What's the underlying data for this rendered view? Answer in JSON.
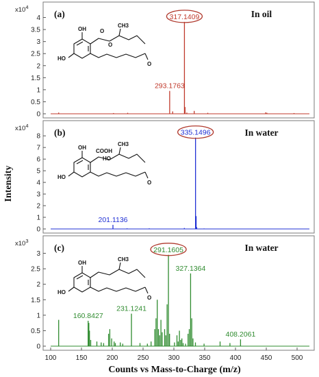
{
  "chart_data": {
    "type": "line",
    "ylabel": "Intensity",
    "xlabel": "Counts vs Mass-to-Charge (m/z)",
    "xlim": [
      100,
      520
    ],
    "xticks": [
      100,
      150,
      200,
      250,
      300,
      350,
      400,
      450,
      500
    ],
    "panels": [
      {
        "tag": "(a)",
        "condition": "In oil",
        "scale_label": "x10",
        "scale_exp": "4",
        "color": "#c0392b",
        "ylim": [
          0,
          4.3
        ],
        "yticks": [
          0,
          0.5,
          1,
          1.5,
          2,
          2.5,
          3,
          3.5,
          4
        ],
        "structure": {
          "oh_left": "OH",
          "oh_bottom": "HO",
          "carbonyl": "O",
          "ring_o": "O",
          "ketone": "O",
          "methyl": "CH3"
        },
        "peaks": [
          [
            113,
            0.05
          ],
          [
            202,
            0.03
          ],
          [
            225,
            0.04
          ],
          [
            293.18,
            0.95
          ],
          [
            298,
            0.1
          ],
          [
            317.14,
            3.82
          ],
          [
            318.1,
            0.28
          ],
          [
            321,
            0.05
          ],
          [
            333,
            0.12
          ],
          [
            355,
            0.04
          ],
          [
            449,
            0.06
          ],
          [
            451,
            0.04
          ],
          [
            495,
            0.03
          ]
        ],
        "labels": [
          {
            "x": 293.1763,
            "y": 0.95,
            "text": "293.1763",
            "circled": false
          },
          {
            "x": 317.1409,
            "y": 3.82,
            "text": "317.1409",
            "circled": true
          }
        ]
      },
      {
        "tag": "(b)",
        "condition": "In water",
        "scale_label": "x10",
        "scale_exp": "4",
        "color": "#1f2fd4",
        "ylim": [
          0,
          8.6
        ],
        "yticks": [
          0,
          1,
          2,
          3,
          4,
          5,
          6,
          7,
          8
        ],
        "structure": {
          "oh_left": "OH",
          "oh_bottom": "HO",
          "cooh": "COOH",
          "ho_chain": "HO",
          "ketone": "O",
          "methyl": "CH3"
        },
        "peaks": [
          [
            201.11,
            0.35
          ],
          [
            224,
            0.05
          ],
          [
            260,
            0.05
          ],
          [
            317,
            0.08
          ],
          [
            335.15,
            7.85
          ],
          [
            336.1,
            1.1
          ],
          [
            337.1,
            0.15
          ],
          [
            349,
            0.04
          ]
        ],
        "labels": [
          {
            "x": 201.1136,
            "y": 0.35,
            "text": "201.1136",
            "circled": false
          },
          {
            "x": 335.1496,
            "y": 7.85,
            "text": "335.1496",
            "circled": true
          }
        ]
      },
      {
        "tag": "(c)",
        "condition": "In water",
        "scale_label": "x10",
        "scale_exp": "3",
        "color": "#2e8b2e",
        "ylim": [
          0,
          3.3
        ],
        "yticks": [
          0,
          0.5,
          1,
          1.5,
          2,
          2.5,
          3
        ],
        "structure": {
          "oh_left": "OH",
          "oh_bottom": "HO",
          "ketone": "O",
          "methyl": "CH3"
        },
        "peaks": [
          [
            113,
            0.85
          ],
          [
            160.84,
            0.82
          ],
          [
            162,
            0.75
          ],
          [
            163,
            0.5
          ],
          [
            165,
            0.2
          ],
          [
            175,
            0.15
          ],
          [
            182,
            0.12
          ],
          [
            186,
            0.1
          ],
          [
            194,
            0.4
          ],
          [
            196,
            0.55
          ],
          [
            199,
            0.25
          ],
          [
            203,
            0.15
          ],
          [
            205,
            0.1
          ],
          [
            213,
            0.12
          ],
          [
            217,
            0.08
          ],
          [
            231.12,
            1.05
          ],
          [
            245,
            0.1
          ],
          [
            257,
            0.08
          ],
          [
            263,
            0.15
          ],
          [
            269,
            0.55
          ],
          [
            271,
            0.9
          ],
          [
            273,
            1.5
          ],
          [
            275,
            0.55
          ],
          [
            277,
            0.35
          ],
          [
            279,
            0.85
          ],
          [
            281,
            0.45
          ],
          [
            285,
            0.55
          ],
          [
            287,
            0.35
          ],
          [
            289,
            1.35
          ],
          [
            291.16,
            2.95
          ],
          [
            293,
            0.4
          ],
          [
            301,
            0.12
          ],
          [
            305,
            0.35
          ],
          [
            307,
            0.15
          ],
          [
            309,
            0.5
          ],
          [
            311,
            0.2
          ],
          [
            313,
            0.25
          ],
          [
            315,
            0.1
          ],
          [
            319,
            0.08
          ],
          [
            323,
            0.4
          ],
          [
            325,
            0.55
          ],
          [
            327.14,
            2.35
          ],
          [
            329,
            0.9
          ],
          [
            331,
            0.25
          ],
          [
            335,
            0.12
          ],
          [
            349,
            0.08
          ],
          [
            375,
            0.15
          ],
          [
            391,
            0.1
          ],
          [
            408.21,
            0.22
          ]
        ],
        "labels": [
          {
            "x": 160.8427,
            "y": 0.82,
            "text": "160.8427",
            "circled": false
          },
          {
            "x": 231.1241,
            "y": 1.05,
            "text": "231.1241",
            "circled": false
          },
          {
            "x": 291.1605,
            "y": 2.95,
            "text": "291.1605",
            "circled": true
          },
          {
            "x": 327.1364,
            "y": 2.35,
            "text": "327.1364",
            "circled": false
          },
          {
            "x": 408.2061,
            "y": 0.22,
            "text": "408.2061",
            "circled": false
          }
        ]
      }
    ]
  }
}
